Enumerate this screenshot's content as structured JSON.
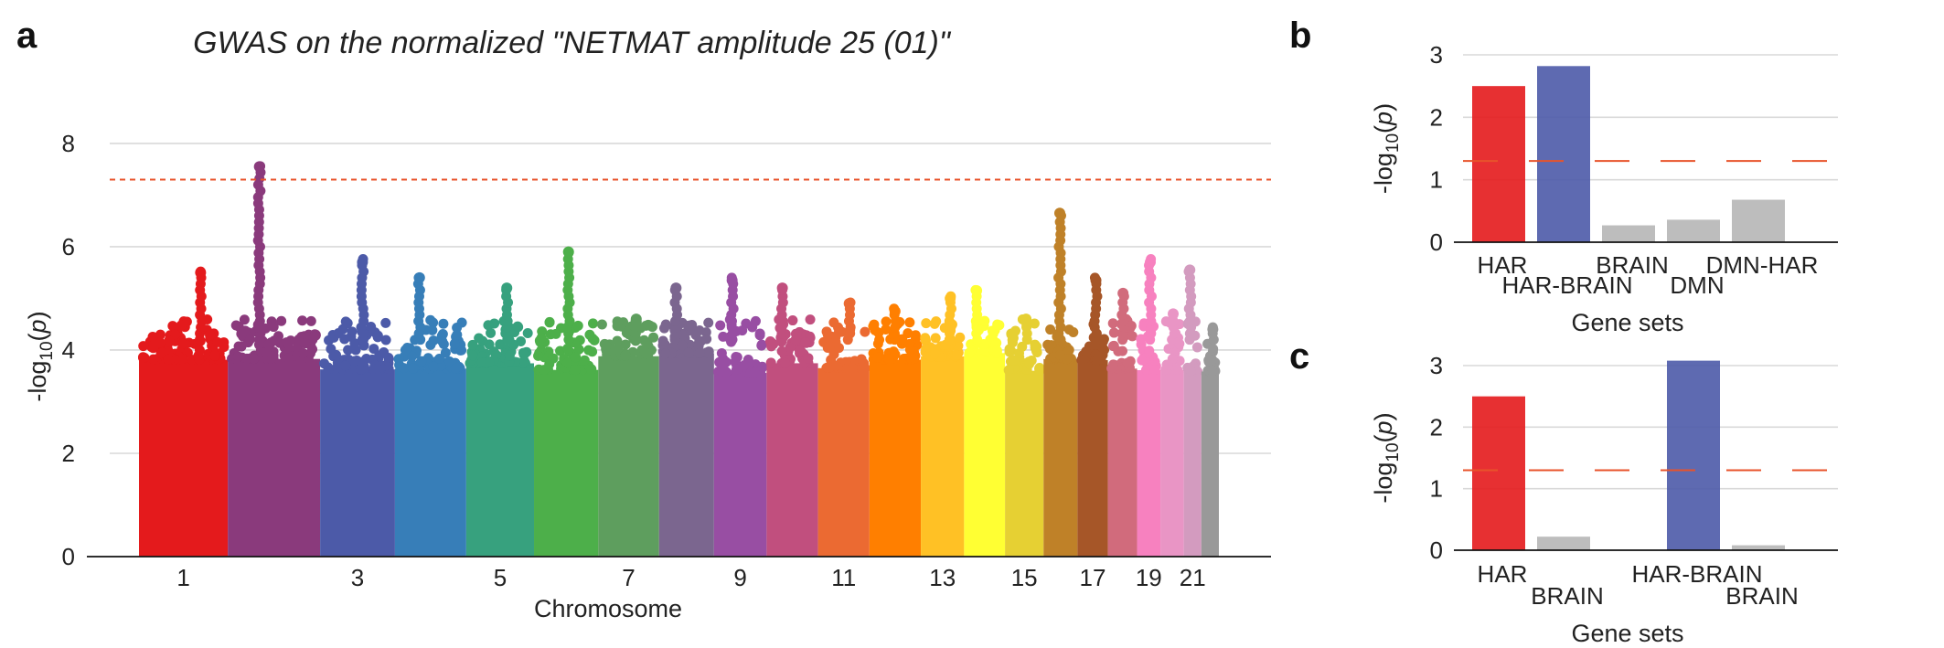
{
  "panels": {
    "a": {
      "letter": "a"
    },
    "b": {
      "letter": "b"
    },
    "c": {
      "letter": "c"
    }
  },
  "chart_data": [
    {
      "type": "scatter",
      "panel": "a",
      "title": "GWAS on the normalized \"NETMAT amplitude 25 (01)\"",
      "xlabel": "Chromosome",
      "ylabel": "-log10(p)",
      "ylim": [
        0,
        8.3
      ],
      "yticks": [
        0,
        2,
        4,
        6,
        8
      ],
      "significance_line": 7.3,
      "threshold_color": "#e8532b",
      "grid": true,
      "chromosomes": [
        {
          "chr": "1",
          "label": "1",
          "width": 7.6,
          "color": "#e41a1c",
          "max": 5.5
        },
        {
          "chr": "2",
          "label": "",
          "width": 7.9,
          "color": "#8a3a7c",
          "max": 7.55
        },
        {
          "chr": "3",
          "label": "3",
          "width": 6.4,
          "color": "#4c5aa8",
          "max": 5.7
        },
        {
          "chr": "4",
          "label": "",
          "width": 6.1,
          "color": "#377eb8",
          "max": 5.4
        },
        {
          "chr": "5",
          "label": "5",
          "width": 5.8,
          "color": "#37a17e",
          "max": 5.2
        },
        {
          "chr": "6",
          "label": "",
          "width": 5.5,
          "color": "#4daf4a",
          "max": 5.9
        },
        {
          "chr": "7",
          "label": "7",
          "width": 5.2,
          "color": "#5e9e5e",
          "max": 4.6
        },
        {
          "chr": "8",
          "label": "",
          "width": 4.7,
          "color": "#7b668f",
          "max": 5.2
        },
        {
          "chr": "9",
          "label": "9",
          "width": 4.5,
          "color": "#984ea3",
          "max": 5.35
        },
        {
          "chr": "10",
          "label": "",
          "width": 4.4,
          "color": "#c14f7e",
          "max": 5.2
        },
        {
          "chr": "11",
          "label": "11",
          "width": 4.4,
          "color": "#eb6a32",
          "max": 4.9
        },
        {
          "chr": "12",
          "label": "",
          "width": 4.4,
          "color": "#ff7f00",
          "max": 4.75
        },
        {
          "chr": "13",
          "label": "13",
          "width": 3.7,
          "color": "#ffc125",
          "max": 5.0
        },
        {
          "chr": "14",
          "label": "",
          "width": 3.5,
          "color": "#ffff33",
          "max": 5.15
        },
        {
          "chr": "15",
          "label": "15",
          "width": 3.3,
          "color": "#e6d033",
          "max": 4.6
        },
        {
          "chr": "16",
          "label": "",
          "width": 2.9,
          "color": "#bf8128",
          "max": 6.65
        },
        {
          "chr": "17",
          "label": "17",
          "width": 2.6,
          "color": "#a65628",
          "max": 5.35
        },
        {
          "chr": "18",
          "label": "",
          "width": 2.5,
          "color": "#d16b7c",
          "max": 5.1
        },
        {
          "chr": "19",
          "label": "19",
          "width": 2.0,
          "color": "#f781bf",
          "max": 5.7
        },
        {
          "chr": "20",
          "label": "",
          "width": 2.0,
          "color": "#e995c5",
          "max": 4.7
        },
        {
          "chr": "21",
          "label": "21",
          "width": 1.5,
          "color": "#d39bbf",
          "max": 5.55
        },
        {
          "chr": "22",
          "label": "",
          "width": 1.5,
          "color": "#999999",
          "max": 4.4
        }
      ]
    },
    {
      "type": "bar",
      "panel": "b",
      "categories": [
        "HAR",
        "HAR-BRAIN",
        "BRAIN",
        "DMN",
        "DMN-HAR"
      ],
      "values": [
        2.5,
        2.82,
        0.27,
        0.36,
        0.68
      ],
      "colors": [
        "#e41a1c",
        "#4c5aa8",
        "#bdbdbd",
        "#bdbdbd",
        "#bdbdbd"
      ],
      "xlabel": "Gene sets",
      "ylabel": "-log10(p)",
      "ylim": [
        0,
        3
      ],
      "yticks": [
        0,
        1,
        2,
        3
      ],
      "threshold": 1.3,
      "threshold_color": "#e8532b",
      "grid": true
    },
    {
      "type": "bar",
      "panel": "c",
      "categories": [
        "HAR",
        "BRAIN",
        "",
        "HAR-BRAIN",
        "BRAIN"
      ],
      "values": [
        2.5,
        0.22,
        null,
        3.08,
        0.08
      ],
      "colors": [
        "#e41a1c",
        "#bdbdbd",
        "#ffffff",
        "#4c5aa8",
        "#bdbdbd"
      ],
      "xlabel": "Gene sets",
      "ylabel": "-log10(p)",
      "ylim": [
        0,
        3
      ],
      "yticks": [
        0,
        1,
        2,
        3
      ],
      "threshold": 1.3,
      "threshold_color": "#e8532b",
      "grid": true
    }
  ]
}
